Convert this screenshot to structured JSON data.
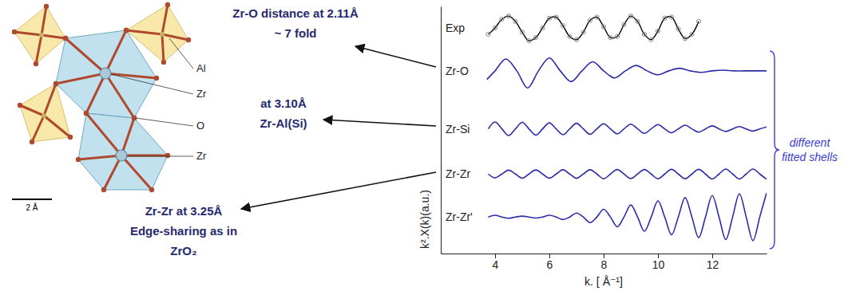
{
  "chart_data": {
    "type": "line",
    "xlabel": "k. [ Å⁻¹]",
    "ylabel": "k².X(k)(a.u.)",
    "xlim": [
      2,
      14
    ],
    "ylim": [
      -1.5,
      10
    ],
    "xticks": [
      4,
      6,
      8,
      10,
      12
    ],
    "yticks": [],
    "tick_labels": "x",
    "grid": false,
    "series": [
      {
        "name": "Exp",
        "color": "#000000",
        "marker": "circle",
        "line_style": "solid",
        "x": [
          3.75,
          4,
          4.25,
          4.5,
          4.75,
          5,
          5.25,
          5.5,
          5.75,
          6,
          6.25,
          6.5,
          6.75,
          7,
          7.25,
          7.5,
          7.75,
          8,
          8.25,
          8.5,
          8.75,
          9,
          9.25,
          9.5,
          9.75,
          10,
          10.25,
          10.5,
          10.75,
          11,
          11.25,
          11.5
        ],
        "values": [
          8.7,
          9.0,
          9.4,
          9.55,
          9.3,
          8.8,
          8.4,
          8.55,
          9.0,
          9.45,
          9.5,
          9.1,
          8.6,
          8.45,
          8.8,
          9.35,
          9.5,
          9.05,
          8.55,
          8.6,
          9.15,
          9.55,
          9.3,
          8.7,
          8.45,
          8.85,
          9.45,
          9.5,
          8.95,
          8.5,
          8.7,
          9.3
        ]
      },
      {
        "name": "Zr-O",
        "color": "#2b2ba6",
        "marker": "none",
        "line_style": "solid",
        "x": [
          3.7,
          4.0,
          4.4,
          4.8,
          5.2,
          5.6,
          6.0,
          6.4,
          6.8,
          7.2,
          7.6,
          8.0,
          8.4,
          8.8,
          9.2,
          9.6,
          10.0,
          10.4,
          10.8,
          11.2,
          11.6,
          12.0,
          12.4,
          12.8,
          13.4,
          14.0
        ],
        "values": [
          6.6,
          7.0,
          7.55,
          7.0,
          6.2,
          7.0,
          7.6,
          7.0,
          6.5,
          7.0,
          7.42,
          7.0,
          6.67,
          7.0,
          7.25,
          7.0,
          6.82,
          7.0,
          7.12,
          7.0,
          6.93,
          7.0,
          7.03,
          7.0,
          7.0,
          7.0
        ]
      },
      {
        "name": "Zr-Si",
        "color": "#2b2ba6",
        "marker": "none",
        "line_style": "solid",
        "x": [
          3.75,
          4,
          4.25,
          4.5,
          4.75,
          5,
          5.25,
          5.5,
          5.75,
          6,
          6.25,
          6.5,
          6.75,
          7,
          7.25,
          7.5,
          7.75,
          8,
          8.25,
          8.5,
          8.75,
          9,
          9.25,
          9.5,
          9.75,
          10,
          10.25,
          10.5,
          10.75,
          11,
          11.25,
          11.5,
          11.75,
          12,
          12.25,
          12.5,
          12.75,
          13,
          13.25,
          13.5,
          13.75,
          14
        ],
        "values": [
          4.3,
          4.62,
          4.3,
          3.99,
          4.3,
          4.6,
          4.3,
          4.01,
          4.3,
          4.58,
          4.3,
          4.03,
          4.3,
          4.56,
          4.3,
          4.05,
          4.3,
          4.54,
          4.3,
          4.07,
          4.3,
          4.52,
          4.3,
          4.09,
          4.3,
          4.5,
          4.3,
          4.12,
          4.3,
          4.47,
          4.3,
          4.15,
          4.3,
          4.44,
          4.3,
          4.18,
          4.3,
          4.41,
          4.3,
          4.2,
          4.3,
          4.39
        ]
      },
      {
        "name": "Zr-Zr",
        "color": "#2b2ba6",
        "marker": "none",
        "line_style": "solid",
        "x": [
          3.75,
          4,
          4.25,
          4.5,
          4.75,
          5,
          5.25,
          5.5,
          5.75,
          6,
          6.25,
          6.5,
          6.75,
          7,
          7.25,
          7.5,
          7.75,
          8,
          8.25,
          8.5,
          8.75,
          9,
          9.25,
          9.5,
          9.75,
          10,
          10.25,
          10.5,
          10.75,
          11,
          11.25,
          11.5,
          11.75,
          12,
          12.25,
          12.5,
          12.75,
          13,
          13.25,
          13.5,
          13.75,
          14
        ],
        "values": [
          2.2,
          2.02,
          2.2,
          2.38,
          2.2,
          2.01,
          2.2,
          2.39,
          2.2,
          2.01,
          2.2,
          2.4,
          2.2,
          2.0,
          2.2,
          2.4,
          2.2,
          1.98,
          2.2,
          2.41,
          2.2,
          1.99,
          2.2,
          2.41,
          2.2,
          1.98,
          2.2,
          2.42,
          2.2,
          1.98,
          2.2,
          2.42,
          2.2,
          1.97,
          2.2,
          2.43,
          2.2,
          1.97,
          2.2,
          2.43,
          2.2,
          1.96
        ]
      },
      {
        "name": "Zr-Zr'",
        "color": "#2b2ba6",
        "marker": "none",
        "line_style": "solid",
        "x": [
          3.75,
          4,
          4.25,
          4.5,
          4.75,
          5,
          5.25,
          5.5,
          5.75,
          6,
          6.25,
          6.5,
          6.75,
          7,
          7.25,
          7.5,
          7.75,
          8,
          8.25,
          8.5,
          8.75,
          9,
          9.25,
          9.5,
          9.75,
          10,
          10.25,
          10.5,
          10.75,
          11,
          11.25,
          11.5,
          11.75,
          12,
          12.25,
          12.5,
          12.75,
          13,
          13.25,
          13.5,
          13.75,
          14
        ],
        "values": [
          0.2,
          0.28,
          0.2,
          0.14,
          0.2,
          0.24,
          0.2,
          0.15,
          0.2,
          0.28,
          0.2,
          0.08,
          0.2,
          0.38,
          0.2,
          -0.06,
          0.2,
          0.56,
          0.2,
          -0.26,
          0.2,
          0.76,
          0.2,
          -0.46,
          0.2,
          0.95,
          0.2,
          -0.63,
          0.2,
          1.1,
          0.2,
          -0.76,
          0.2,
          1.2,
          0.2,
          -0.85,
          0.2,
          1.28,
          0.2,
          -0.9,
          0.2,
          1.32
        ]
      }
    ],
    "annotations": [
      {
        "lines": [
          "Zr-O distance at 2.11Å",
          "~ 7 fold"
        ]
      },
      {
        "lines": [
          "at 3.10Å",
          "Zr-Al(Si)"
        ]
      },
      {
        "lines": [
          "Zr-Zr at 3.25Å",
          "Edge-sharing as in",
          "ZrO₂"
        ]
      }
    ],
    "shells_label": "different fitted shells",
    "structure": {
      "labels": [
        "Al",
        "Zr",
        "O",
        "Zr"
      ],
      "scale_bar": "2 Å"
    }
  }
}
